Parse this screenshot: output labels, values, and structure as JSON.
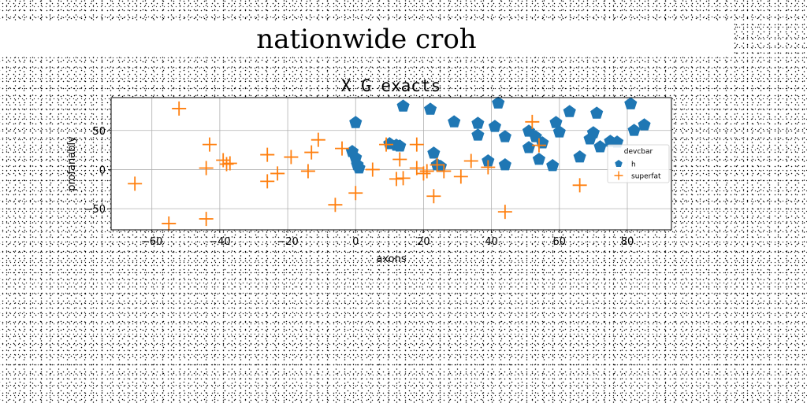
{
  "figure": {
    "suptitle": "nationwide croh"
  },
  "chart_data": {
    "type": "scatter",
    "title": "X G exacts",
    "xlabel": "axons",
    "ylabel": "profanably",
    "xlim": [
      -72,
      93
    ],
    "ylim": [
      -77,
      92
    ],
    "xticks": [
      -60,
      -40,
      -20,
      0,
      20,
      40,
      60,
      80
    ],
    "yticks": [
      -50,
      0,
      50
    ],
    "grid": true,
    "legend": {
      "title": "devcbar",
      "position": "center-right"
    },
    "series": [
      {
        "name": "h",
        "marker": "pentagon",
        "color": "#1f77b4",
        "points": [
          [
            -1,
            23
          ],
          [
            0,
            15
          ],
          [
            0.5,
            6
          ],
          [
            1,
            2
          ],
          [
            0,
            60
          ],
          [
            10,
            33
          ],
          [
            12,
            31
          ],
          [
            13,
            30
          ],
          [
            14,
            81
          ],
          [
            22,
            77
          ],
          [
            23,
            21
          ],
          [
            24,
            6
          ],
          [
            25,
            4
          ],
          [
            29,
            61
          ],
          [
            36,
            59
          ],
          [
            36,
            44
          ],
          [
            39,
            11
          ],
          [
            41,
            55
          ],
          [
            42,
            85
          ],
          [
            44,
            42
          ],
          [
            44,
            6
          ],
          [
            51,
            49
          ],
          [
            51,
            28
          ],
          [
            53,
            42
          ],
          [
            54,
            13
          ],
          [
            55,
            34
          ],
          [
            58,
            5
          ],
          [
            59,
            60
          ],
          [
            60,
            48
          ],
          [
            63,
            74
          ],
          [
            66,
            16
          ],
          [
            69,
            39
          ],
          [
            70,
            47
          ],
          [
            71,
            72
          ],
          [
            72,
            29
          ],
          [
            75,
            36
          ],
          [
            77,
            35
          ],
          [
            81,
            84
          ],
          [
            82,
            50
          ],
          [
            85,
            57
          ]
        ]
      },
      {
        "name": "superfat",
        "marker": "plus",
        "color": "#ff7f0e",
        "points": [
          [
            -65,
            -18
          ],
          [
            -52,
            78
          ],
          [
            -55,
            -69
          ],
          [
            -44,
            2
          ],
          [
            -44,
            -63
          ],
          [
            -43,
            32
          ],
          [
            -39,
            12
          ],
          [
            -38,
            7
          ],
          [
            -37,
            8
          ],
          [
            -26,
            19
          ],
          [
            -26,
            -15
          ],
          [
            -23,
            -5
          ],
          [
            -19,
            16
          ],
          [
            -14,
            -2
          ],
          [
            -13,
            22
          ],
          [
            -11,
            38
          ],
          [
            -6,
            -45
          ],
          [
            -4,
            27
          ],
          [
            0,
            -30
          ],
          [
            5,
            0
          ],
          [
            9,
            32
          ],
          [
            12,
            -12
          ],
          [
            13,
            13
          ],
          [
            14,
            -11
          ],
          [
            18,
            2
          ],
          [
            18,
            32
          ],
          [
            20,
            -5
          ],
          [
            21,
            -2
          ],
          [
            23,
            -34
          ],
          [
            24,
            6
          ],
          [
            26,
            -2
          ],
          [
            31,
            -9
          ],
          [
            34,
            11
          ],
          [
            39,
            3
          ],
          [
            44,
            -54
          ],
          [
            52,
            61
          ],
          [
            54,
            31
          ],
          [
            66,
            -20
          ]
        ]
      }
    ]
  }
}
